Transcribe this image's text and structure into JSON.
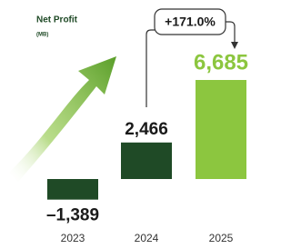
{
  "chart_data": {
    "type": "bar",
    "title": "Net Profit",
    "subtitle": "(MB)",
    "categories": [
      "2023",
      "2024",
      "2025"
    ],
    "values": [
      -1389,
      2466,
      6685
    ],
    "value_labels": [
      "–1,389",
      "2,466",
      "6,685"
    ],
    "colors": [
      "#1f4a26",
      "#1f4a26",
      "#8cc63f"
    ],
    "label_colors": [
      "#1a1a1a",
      "#1a1a1a",
      "#8cc63f"
    ],
    "annotation": "+171.0%"
  }
}
